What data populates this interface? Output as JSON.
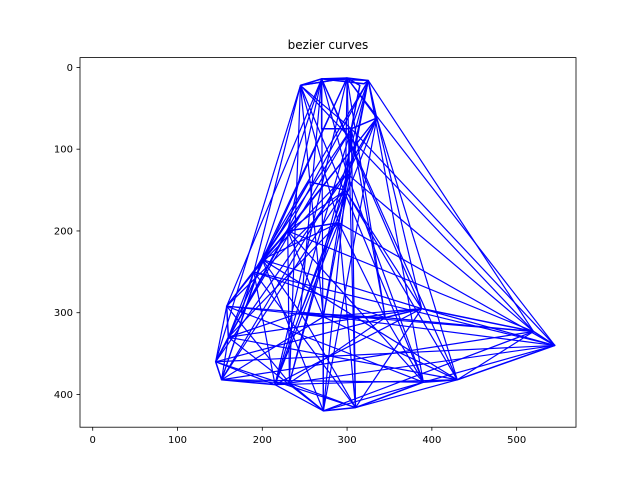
{
  "chart_data": {
    "type": "line",
    "title": "bezier curves",
    "xlabel": "",
    "ylabel": "",
    "xlim": [
      -15,
      570
    ],
    "ylim": [
      440,
      -12
    ],
    "y_inverted": true,
    "x_ticks": [
      0,
      100,
      200,
      300,
      400,
      500
    ],
    "y_ticks": [
      0,
      100,
      200,
      300,
      400
    ],
    "grid": false,
    "legend": "none",
    "line_color": "#0000ff",
    "series": [
      {
        "values": [
          [
            [
              245,
              22
            ],
            [
              270,
              14
            ],
            [
              300,
              13
            ],
            [
              325,
              16
            ],
            [
              335,
              62
            ],
            [
              305,
              75
            ],
            [
              300,
              130
            ],
            [
              298,
              150
            ],
            [
              290,
              190
            ],
            [
              230,
              200
            ],
            [
              200,
              235
            ],
            [
              190,
              250
            ],
            [
              158,
              292
            ],
            [
              160,
              330
            ],
            [
              145,
              360
            ],
            [
              152,
              382
            ],
            [
              215,
              388
            ],
            [
              232,
              386
            ],
            [
              272,
              420
            ],
            [
              310,
              416
            ],
            [
              390,
              385
            ],
            [
              430,
              382
            ],
            [
              545,
              340
            ],
            [
              520,
              323
            ],
            [
              388,
              295
            ],
            [
              345,
              306
            ],
            [
              272,
              305
            ],
            [
              245,
              300
            ]
          ],
          [
            [
              245,
              22
            ],
            [
              300,
              13
            ],
            [
              315,
              22
            ],
            [
              305,
              75
            ],
            [
              270,
              75
            ],
            [
              270,
              14
            ],
            [
              320,
              20
            ],
            [
              325,
              16
            ]
          ],
          [
            [
              305,
              75
            ],
            [
              298,
              150
            ],
            [
              255,
              140
            ],
            [
              222,
              200
            ],
            [
              190,
              250
            ],
            [
              175,
              300
            ]
          ]
        ]
      }
    ]
  }
}
